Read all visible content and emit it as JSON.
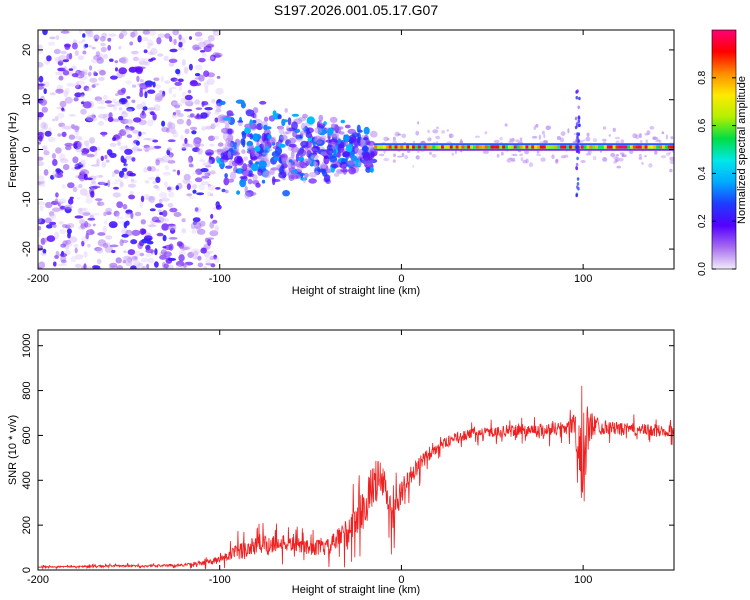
{
  "figure_title": "S197.2026.001.05.17.G07",
  "chart_data": [
    {
      "type": "heatmap",
      "title": "S197.2026.001.05.17.G07",
      "xlabel": "Height of straight line (km)",
      "ylabel": "Frequency (Hz)",
      "xlim": [
        -200,
        150
      ],
      "ylim": [
        -24,
        24
      ],
      "x_ticks": [
        -200,
        -100,
        0,
        100
      ],
      "x_tick_labels": [
        "-200",
        "-100",
        "0",
        "100"
      ],
      "y_ticks": [
        20,
        10,
        0,
        -10,
        -20
      ],
      "y_tick_labels": [
        "20",
        "10",
        "0",
        "-10",
        "-20"
      ],
      "colorbar": {
        "label": "Normalized spectral amplitude",
        "range": [
          0,
          1
        ],
        "ticks": [
          0.0,
          0.2,
          0.4,
          0.6,
          0.8
        ],
        "tick_labels": [
          "0.0",
          "0.2",
          "0.4",
          "0.6",
          "0.8"
        ],
        "colors": [
          "#f2ecfb",
          "#a66cf0",
          "#5500ff",
          "#1e3cff",
          "#00aaff",
          "#00e8e8",
          "#00dd44",
          "#b4f000",
          "#ffea00",
          "#ff8c00",
          "#ff0000",
          "#ff0077"
        ]
      },
      "series": [
        {
          "name": "scatter noise region",
          "x_range": [
            -200,
            -100
          ],
          "freq_range": [
            -24,
            24
          ],
          "amplitude_range": [
            0.02,
            0.25
          ]
        },
        {
          "name": "transition region",
          "x_range": [
            -100,
            -15
          ],
          "freq_range": [
            -12,
            12
          ],
          "amplitude_range": [
            0.05,
            0.4
          ]
        },
        {
          "name": "carrier line",
          "x_range": [
            -15,
            150
          ],
          "freq_center": 0.5,
          "amplitude_range": [
            0.5,
            1.0
          ]
        },
        {
          "name": "spike near 100 km",
          "x": 97,
          "freq_range": [
            -10,
            12
          ]
        }
      ]
    },
    {
      "type": "line",
      "xlabel": "Height of straight line (km)",
      "ylabel": "SNR (10 * v/v)",
      "xlim": [
        -200,
        150
      ],
      "ylim": [
        0,
        1070
      ],
      "x_ticks": [
        -200,
        -100,
        0,
        100
      ],
      "x_tick_labels": [
        "-200",
        "-100",
        "0",
        "100"
      ],
      "y_ticks": [
        0,
        200,
        400,
        600,
        800,
        1000
      ],
      "y_tick_labels": [
        "0",
        "200",
        "400",
        "600",
        "800",
        "1000"
      ],
      "series": [
        {
          "name": "SNR",
          "color": "#ef2020",
          "x": [
            -200,
            -180,
            -160,
            -140,
            -120,
            -110,
            -100,
            -90,
            -80,
            -70,
            -60,
            -50,
            -40,
            -30,
            -20,
            -15,
            -10,
            -5,
            0,
            5,
            10,
            20,
            30,
            40,
            50,
            60,
            70,
            80,
            90,
            95,
            100,
            102,
            105,
            110,
            120,
            130,
            140,
            150
          ],
          "values": [
            15,
            15,
            18,
            18,
            22,
            30,
            45,
            80,
            110,
            120,
            115,
            100,
            100,
            170,
            280,
            400,
            390,
            220,
            350,
            420,
            470,
            550,
            590,
            610,
            615,
            620,
            625,
            625,
            635,
            650,
            420,
            600,
            650,
            640,
            630,
            625,
            620,
            620
          ],
          "spread": [
            6,
            6,
            8,
            8,
            10,
            18,
            30,
            70,
            90,
            80,
            60,
            60,
            70,
            120,
            160,
            180,
            170,
            140,
            100,
            80,
            70,
            45,
            40,
            40,
            40,
            45,
            50,
            55,
            60,
            90,
            350,
            250,
            100,
            60,
            50,
            50,
            50,
            50
          ]
        }
      ]
    }
  ]
}
